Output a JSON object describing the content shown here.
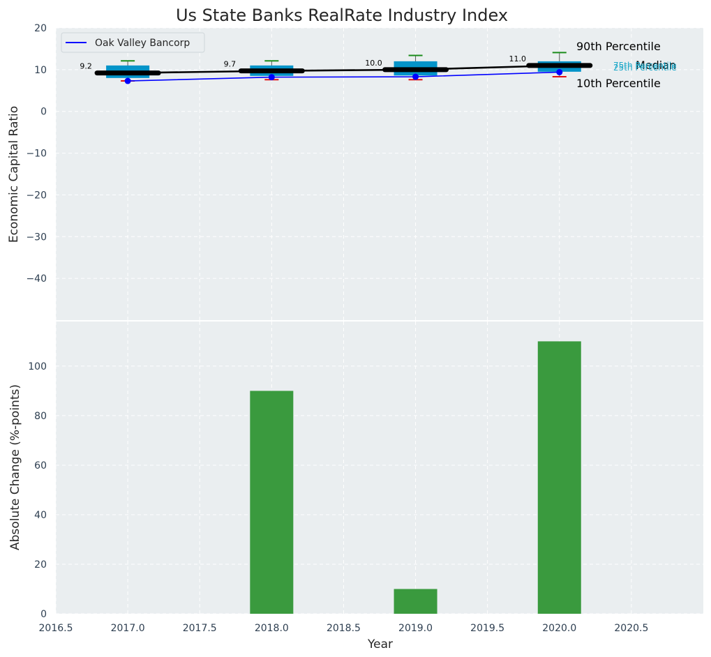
{
  "chart_data": [
    {
      "type": "box",
      "title": "Us State Banks RealRate Industry Index",
      "xlabel": "",
      "ylabel": "Economic Capital Ratio",
      "xlim": [
        2016.5,
        2021.0
      ],
      "ylim": [
        -50,
        20
      ],
      "yticks": [
        20,
        10,
        0,
        -10,
        -20,
        -30,
        -40
      ],
      "grid": true,
      "legend": {
        "position": "top-left",
        "entries": [
          "Oak Valley Bancorp"
        ]
      },
      "years": [
        2017,
        2018,
        2019,
        2020
      ],
      "p10": [
        7.3,
        7.6,
        7.6,
        8.3
      ],
      "p25": [
        8.0,
        8.5,
        8.6,
        9.5
      ],
      "median": [
        9.2,
        9.7,
        10.0,
        11.0
      ],
      "p75": [
        11.0,
        11.0,
        12.0,
        12.0
      ],
      "p90": [
        12.1,
        12.1,
        13.4,
        14.1
      ],
      "median_labels": [
        "9.2",
        "9.7",
        "10.0",
        "11.0"
      ],
      "series": [
        {
          "name": "Oak Valley Bancorp",
          "values": [
            7.3,
            8.2,
            8.3,
            9.4
          ],
          "color": "#0000ff"
        },
        {
          "name": "Median",
          "values": [
            9.2,
            9.7,
            10.0,
            11.0
          ],
          "color": "#000000"
        }
      ],
      "annotations": {
        "p90": "90th Percentile",
        "median": "Median",
        "p10": "10th Percentile",
        "p75": "75th Percentile",
        "p25": "25th Percentile"
      },
      "colors": {
        "box": "#0494c9",
        "p90": "#1a8c1a",
        "p10": "#e01010",
        "quartile_text": "#1fa9c9"
      }
    },
    {
      "type": "bar",
      "xlabel": "Year",
      "ylabel": "Absolute Change (%-points)",
      "x": [
        2018,
        2019,
        2020
      ],
      "values": [
        90,
        10,
        110
      ],
      "xlim": [
        2016.5,
        2021.0
      ],
      "ylim": [
        0,
        118
      ],
      "xticks": [
        2016.5,
        2017.0,
        2017.5,
        2018.0,
        2018.5,
        2019.0,
        2019.5,
        2020.0,
        2020.5
      ],
      "xtick_labels": [
        "2016.5",
        "2017.0",
        "2017.5",
        "2018.0",
        "2018.5",
        "2019.0",
        "2019.5",
        "2020.0",
        "2020.5"
      ],
      "yticks": [
        0,
        20,
        40,
        60,
        80,
        100
      ],
      "grid": true,
      "color": "#3a9a3e"
    }
  ]
}
